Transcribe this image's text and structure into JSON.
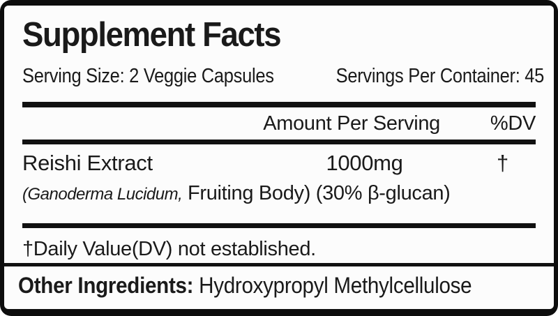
{
  "label": {
    "title": "Supplement Facts",
    "serving_line": {
      "size": "Serving Size: 2 Veggie Capsules",
      "per_container": "Servings Per Container: 45"
    },
    "header": {
      "amount_label": "Amount Per Serving",
      "dv_label": "%DV"
    },
    "ingredient": {
      "name": "Reishi Extract",
      "amount": "1000mg",
      "dv_symbol": "†",
      "sub_italic": "(Ganoderma Lucidum,",
      "sub_regular": " Fruiting Body) (30% β-glucan)"
    },
    "footnote": "†Daily Value(DV) not established.",
    "other_ingredients": {
      "label": "Other Ingredients:",
      "value": " Hydroxypropyl Methylcellulose"
    }
  },
  "colors": {
    "frame": "#0d0d0d",
    "panel_background": "#fcfcfc",
    "text": "#1a1a1a",
    "rule": "#111111"
  }
}
